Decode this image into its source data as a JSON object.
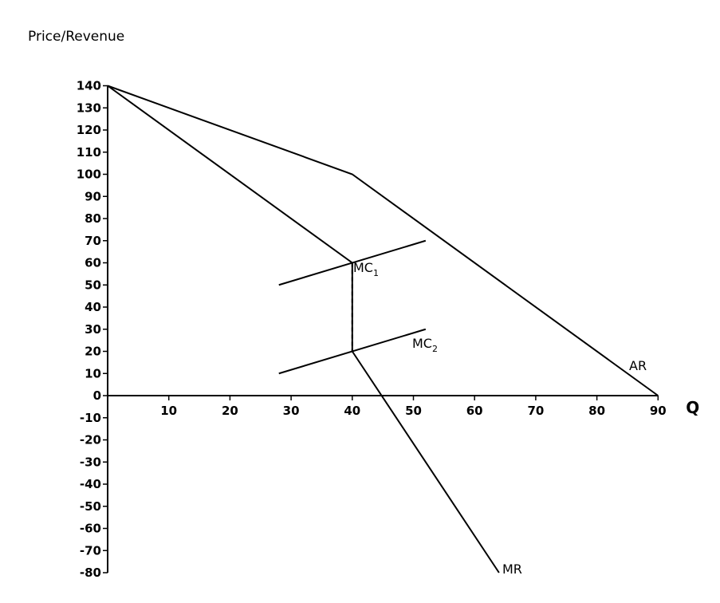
{
  "chart_data": {
    "type": "line",
    "title": "",
    "ylabel": "Price/Revenue",
    "xlabel": "Q",
    "xlim": [
      0,
      90
    ],
    "ylim": [
      -80,
      140
    ],
    "x_ticks": [
      10,
      20,
      30,
      40,
      50,
      60,
      70,
      80,
      90
    ],
    "y_ticks": [
      140,
      130,
      120,
      110,
      100,
      90,
      80,
      70,
      60,
      50,
      40,
      30,
      20,
      10,
      0,
      -10,
      -20,
      -30,
      -40,
      -50,
      -60,
      -70,
      -80
    ],
    "grid": false,
    "series": [
      {
        "name": "AR",
        "points": [
          [
            0,
            140
          ],
          [
            40,
            100
          ],
          [
            90,
            0
          ]
        ]
      },
      {
        "name": "MR",
        "points": [
          [
            0,
            140
          ],
          [
            40,
            60
          ],
          [
            40,
            20
          ],
          [
            64,
            -80
          ]
        ]
      },
      {
        "name": "MC",
        "sub": "1",
        "points": [
          [
            28,
            50
          ],
          [
            52,
            70
          ]
        ]
      },
      {
        "name": "MC",
        "sub": "2",
        "points": [
          [
            28,
            10
          ],
          [
            52,
            30
          ]
        ]
      }
    ],
    "dashed_segment": [
      [
        40,
        60
      ],
      [
        40,
        20
      ]
    ]
  }
}
